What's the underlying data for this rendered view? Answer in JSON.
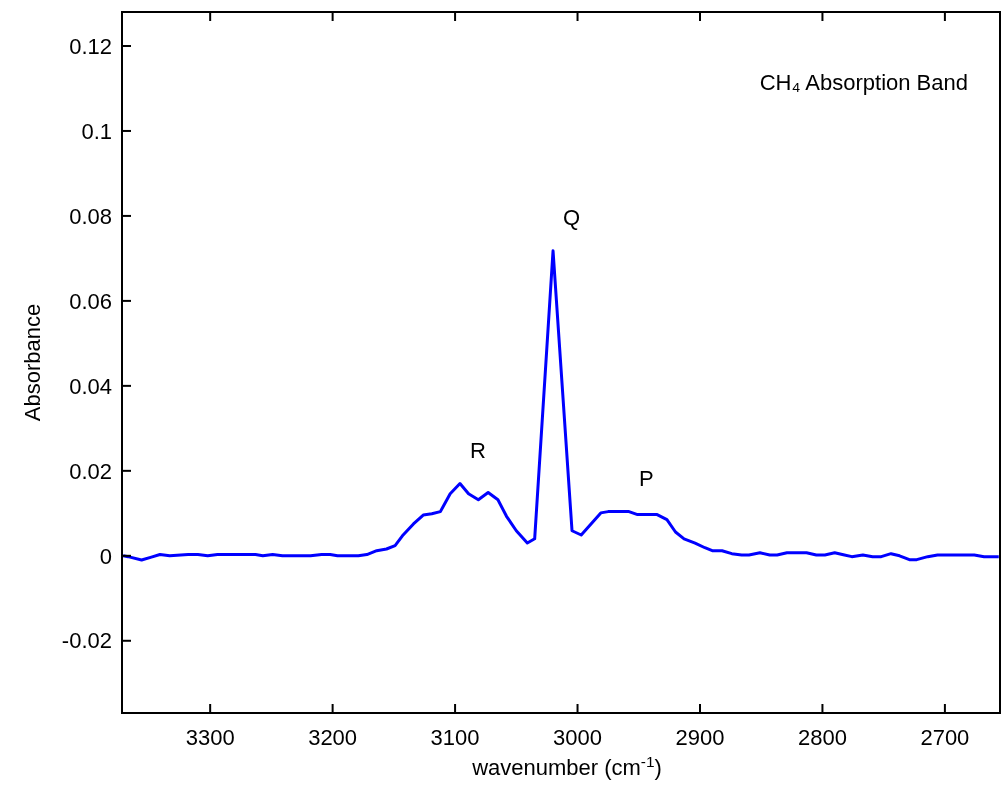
{
  "chart_data": {
    "type": "line",
    "title": "CH₄ Absorption  Band",
    "xlabel": "wavenumber (cm$^{-1}$)",
    "ylabel": "Absorbance",
    "xlim": [
      3372,
      2655
    ],
    "xticks": [
      3300,
      3200,
      3100,
      3000,
      2900,
      2800,
      2700
    ],
    "ylim": [
      -0.037,
      0.128
    ],
    "yticks": [
      -0.02,
      0,
      0.02,
      0.04,
      0.06,
      0.08,
      0.1,
      0.12
    ],
    "grid": false,
    "marker": "none",
    "line_style": "solid",
    "series": [
      {
        "color": "#0000ff",
        "x": [
          3371,
          3367,
          3356,
          3348,
          3341,
          3333,
          3318,
          3310,
          3302,
          3294,
          3263,
          3257,
          3249,
          3241,
          3218,
          3209,
          3202,
          3196,
          3179,
          3172,
          3164,
          3156,
          3149,
          3143,
          3134,
          3126,
          3119,
          3112,
          3104,
          3096,
          3089,
          3081,
          3073,
          3065,
          3058,
          3050,
          3041,
          3035,
          3020,
          3004.5,
          2997,
          2981,
          2975,
          2958,
          2951,
          2935,
          2927,
          2920,
          2913,
          2904,
          2896,
          2890,
          2882,
          2874,
          2866,
          2860,
          2851,
          2843,
          2837,
          2829,
          2813,
          2805,
          2798,
          2790,
          2782,
          2776,
          2767,
          2759,
          2752,
          2744,
          2737,
          2729,
          2723,
          2714,
          2706,
          2676,
          2668,
          2656
        ],
        "values": [
          0,
          -0.0002,
          -0.001,
          -0.0003,
          0.0003,
          0,
          0.0003,
          0.0003,
          0,
          0.0003,
          0.0003,
          0,
          0.0003,
          0,
          0,
          0.0003,
          0.0003,
          0,
          0,
          0.0003,
          0.0012,
          0.0016,
          0.0024,
          0.0047,
          0.0075,
          0.0096,
          0.0099,
          0.0104,
          0.0146,
          0.017,
          0.0146,
          0.0132,
          0.0149,
          0.0132,
          0.0093,
          0.0059,
          0.003,
          0.004,
          0.0718,
          0.0059,
          0.0049,
          0.0101,
          0.0104,
          0.0104,
          0.0097,
          0.0097,
          0.0085,
          0.0056,
          0.004,
          0.003,
          0.0019,
          0.0012,
          0.0012,
          0.0005,
          0.0002,
          0.0002,
          0.0007,
          0.0002,
          0.0002,
          0.0007,
          0.0007,
          0.0002,
          0.0002,
          0.0007,
          0.0002,
          -0.0002,
          0.0002,
          -0.0002,
          -0.0002,
          0.0005,
          0,
          -0.0009,
          -0.0009,
          -0.0002,
          0.0002,
          0.0002,
          -0.0002,
          -0.0002
        ]
      }
    ],
    "annotations": [
      {
        "text": "R",
        "x": 3096,
        "y": 0.017
      },
      {
        "text": "Q",
        "x": 3020,
        "y": 0.0718
      },
      {
        "text": "P",
        "x": 2958,
        "y": 0.0104
      }
    ]
  }
}
